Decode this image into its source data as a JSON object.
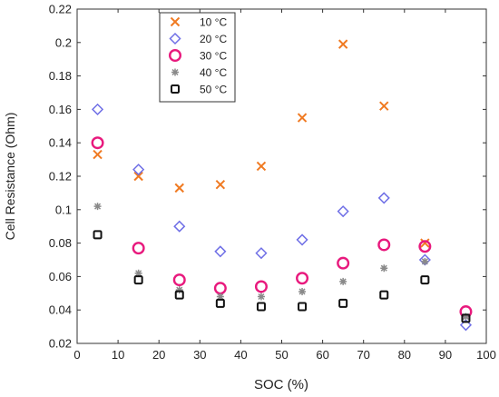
{
  "chart_data": {
    "type": "scatter",
    "title": "",
    "xlabel": "SOC (%)",
    "ylabel": "Cell Resistance (Ohm)",
    "xlim": [
      0,
      100
    ],
    "ylim": [
      0.02,
      0.22
    ],
    "xticks": [
      "0",
      "10",
      "20",
      "30",
      "40",
      "50",
      "60",
      "70",
      "80",
      "90",
      "100"
    ],
    "yticks": [
      "0.02",
      "0.04",
      "0.06",
      "0.08",
      "0.1",
      "0.12",
      "0.14",
      "0.16",
      "0.18",
      "0.2",
      "0.22"
    ],
    "grid": false,
    "legend_position": "top-left",
    "series": [
      {
        "name": "10 °C",
        "marker": "x-cross",
        "color": "#f07a22",
        "x": [
          5,
          15,
          25,
          35,
          45,
          55,
          65,
          75,
          85
        ],
        "y": [
          0.133,
          0.12,
          0.113,
          0.115,
          0.126,
          0.155,
          0.199,
          0.162,
          0.08
        ]
      },
      {
        "name": "20 °C",
        "marker": "diamond",
        "color": "#6f6fe6",
        "x": [
          5,
          15,
          25,
          35,
          45,
          55,
          65,
          75,
          85,
          95
        ],
        "y": [
          0.16,
          0.124,
          0.09,
          0.075,
          0.074,
          0.082,
          0.099,
          0.107,
          0.07,
          0.031
        ]
      },
      {
        "name": "30 °C",
        "marker": "circle",
        "color": "#e8197d",
        "x": [
          5,
          15,
          25,
          35,
          45,
          55,
          65,
          75,
          85,
          95
        ],
        "y": [
          0.14,
          0.077,
          0.058,
          0.053,
          0.054,
          0.059,
          0.068,
          0.079,
          0.078,
          0.039
        ]
      },
      {
        "name": "40 °C",
        "marker": "asterisk",
        "color": "#8a8a8a",
        "x": [
          5,
          15,
          25,
          35,
          45,
          55,
          65,
          75,
          85,
          95
        ],
        "y": [
          0.102,
          0.062,
          0.052,
          0.048,
          0.048,
          0.051,
          0.057,
          0.065,
          0.069,
          0.036
        ]
      },
      {
        "name": "50 °C",
        "marker": "square",
        "color": "#111111",
        "x": [
          5,
          15,
          25,
          35,
          45,
          55,
          65,
          75,
          85,
          95
        ],
        "y": [
          0.085,
          0.058,
          0.049,
          0.044,
          0.042,
          0.042,
          0.044,
          0.049,
          0.058,
          0.035
        ]
      }
    ]
  }
}
